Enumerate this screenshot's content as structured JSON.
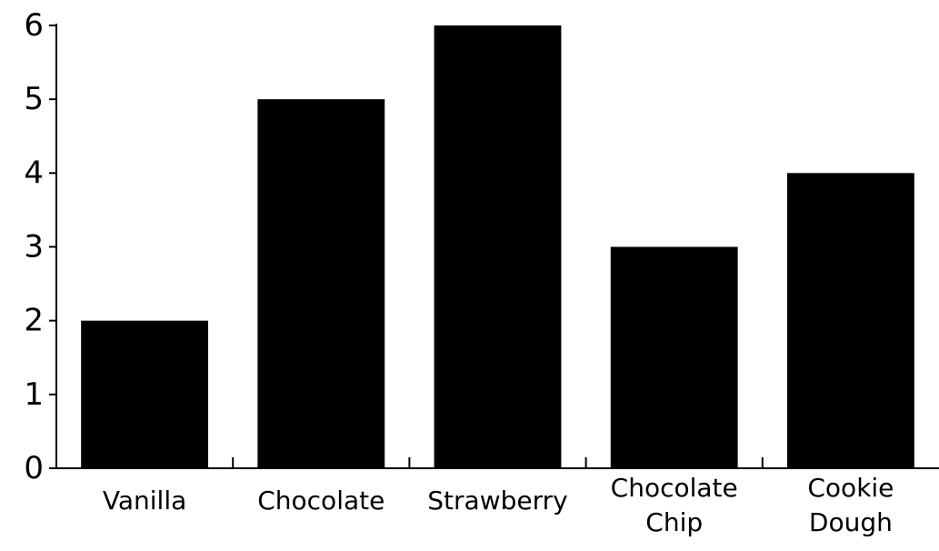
{
  "chart_data": {
    "type": "bar",
    "title": "",
    "xlabel": "",
    "ylabel": "",
    "categories": [
      "Vanilla",
      "Chocolate",
      "Strawberry",
      "Chocolate Chip",
      "Cookie Dough"
    ],
    "category_lines": [
      [
        "Vanilla"
      ],
      [
        "Chocolate"
      ],
      [
        "Strawberry"
      ],
      [
        "Chocolate",
        "Chip"
      ],
      [
        "Cookie",
        "Dough"
      ]
    ],
    "values": [
      2,
      5,
      6,
      3,
      4
    ],
    "yticks": [
      0,
      1,
      2,
      3,
      4,
      5,
      6
    ],
    "ylim": [
      0,
      6
    ],
    "grid": false,
    "bar_color": "#000000"
  }
}
